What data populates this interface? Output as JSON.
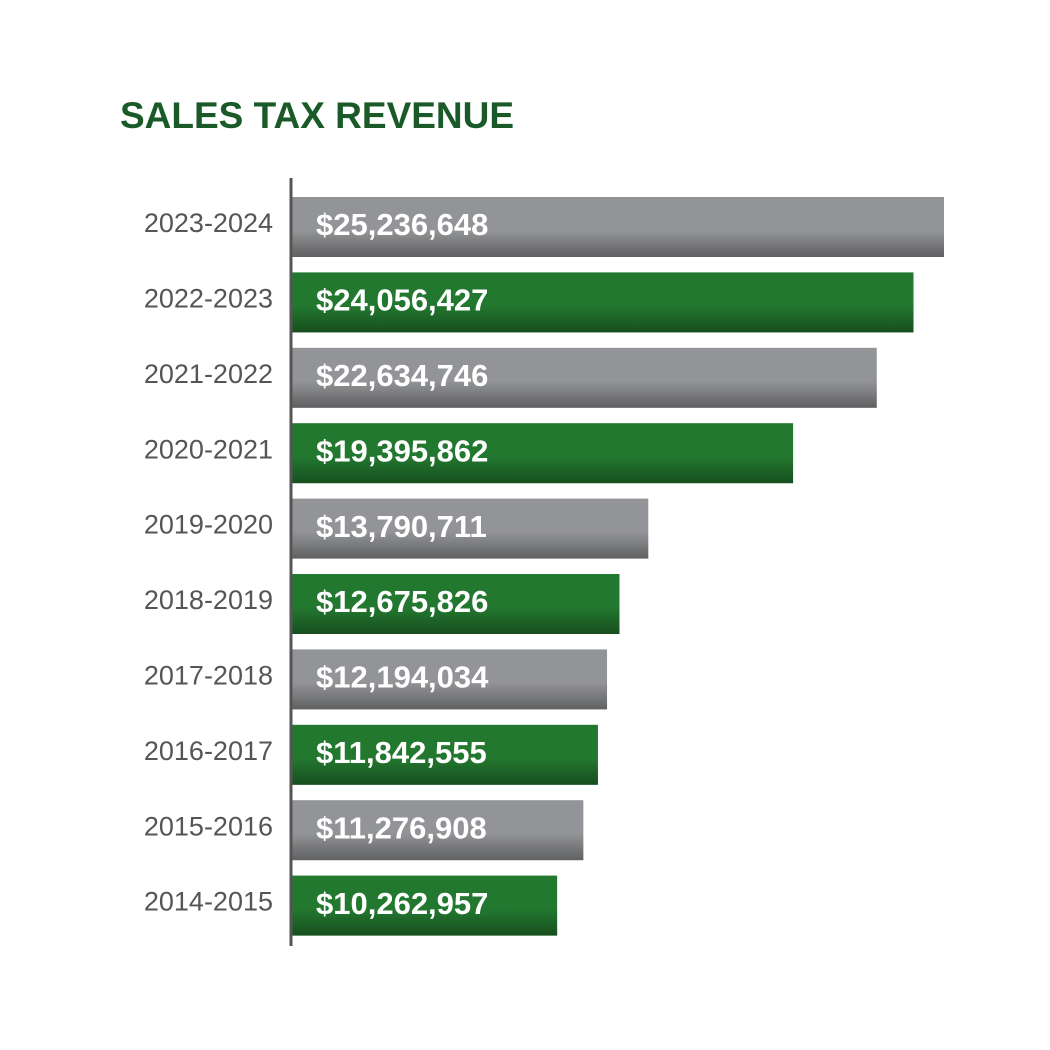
{
  "chart_data": {
    "type": "bar",
    "orientation": "horizontal",
    "title": "SALES TAX REVENUE",
    "categories": [
      "2023-2024",
      "2022-2023",
      "2021-2022",
      "2020-2021",
      "2019-2020",
      "2018-2019",
      "2017-2018",
      "2016-2017",
      "2015-2016",
      "2014-2015"
    ],
    "values": [
      25236648,
      24056427,
      22634746,
      19395862,
      13790711,
      12675826,
      12194034,
      11842555,
      11276908,
      10262957
    ],
    "value_labels": [
      "$25,236,648",
      "$24,056,427",
      "$22,634,746",
      "$19,395,862",
      "$13,790,711",
      "$12,675,826",
      "$12,194,034",
      "$11,842,555",
      "$11,276,908",
      "$10,262,957"
    ],
    "colors": [
      "#939497",
      "#23782f",
      "#939497",
      "#23782f",
      "#939497",
      "#23782f",
      "#939497",
      "#23782f",
      "#939497",
      "#23782f"
    ]
  }
}
